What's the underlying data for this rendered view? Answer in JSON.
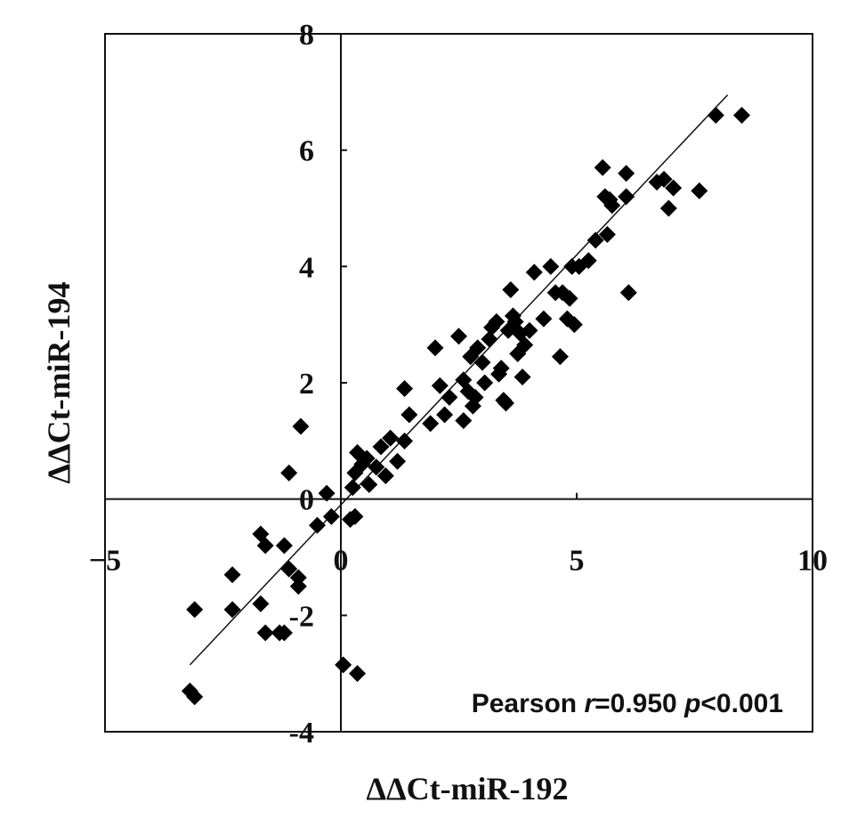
{
  "chart_data": {
    "type": "scatter",
    "title": "",
    "xlabel": "ΔΔCt-miR-192",
    "ylabel": "ΔΔCt-miR-194",
    "xlim": [
      -5,
      10
    ],
    "ylim": [
      -4,
      8
    ],
    "xticks": [
      -5,
      0,
      5,
      10
    ],
    "yticks": [
      -4,
      -2,
      0,
      2,
      4,
      6,
      8
    ],
    "grid": false,
    "legend": "none",
    "marker": "diamond",
    "color": "#000000",
    "annotation": {
      "prefix": "Pearson ",
      "r_symbol": "r",
      "r_value": "=0.950 ",
      "p_symbol": "p",
      "p_value": "<0.001"
    },
    "trendline": {
      "x": [
        -3.2,
        8.2
      ],
      "y": [
        -2.85,
        6.95
      ]
    },
    "points": [
      [
        -3.2,
        -3.3
      ],
      [
        -3.1,
        -3.4
      ],
      [
        -3.1,
        -1.9
      ],
      [
        -2.3,
        -1.3
      ],
      [
        -2.3,
        -1.9
      ],
      [
        -1.7,
        -0.6
      ],
      [
        -1.7,
        -1.8
      ],
      [
        -1.6,
        -2.3
      ],
      [
        -1.6,
        -0.8
      ],
      [
        -1.3,
        -2.3
      ],
      [
        -1.2,
        -2.3
      ],
      [
        -1.2,
        -0.8
      ],
      [
        -1.1,
        -1.2
      ],
      [
        -1.1,
        0.45
      ],
      [
        -0.9,
        -1.5
      ],
      [
        -0.9,
        -1.35
      ],
      [
        -0.85,
        1.25
      ],
      [
        -0.5,
        -0.45
      ],
      [
        -0.3,
        0.1
      ],
      [
        -0.2,
        -0.3
      ],
      [
        0.05,
        -2.85
      ],
      [
        0.2,
        -0.35
      ],
      [
        0.3,
        -0.3
      ],
      [
        0.35,
        -3.0
      ],
      [
        0.25,
        0.2
      ],
      [
        0.3,
        0.45
      ],
      [
        0.35,
        0.8
      ],
      [
        0.45,
        0.6
      ],
      [
        0.55,
        0.7
      ],
      [
        0.6,
        0.25
      ],
      [
        0.75,
        0.55
      ],
      [
        0.85,
        0.9
      ],
      [
        0.95,
        0.4
      ],
      [
        1.05,
        1.05
      ],
      [
        1.2,
        0.65
      ],
      [
        1.35,
        1.0
      ],
      [
        1.35,
        1.9
      ],
      [
        1.45,
        1.45
      ],
      [
        1.9,
        1.3
      ],
      [
        2.0,
        2.6
      ],
      [
        2.1,
        1.95
      ],
      [
        2.2,
        1.45
      ],
      [
        2.3,
        1.75
      ],
      [
        2.5,
        2.8
      ],
      [
        2.6,
        2.05
      ],
      [
        2.6,
        1.35
      ],
      [
        2.7,
        1.85
      ],
      [
        2.75,
        2.45
      ],
      [
        2.8,
        1.6
      ],
      [
        2.85,
        1.75
      ],
      [
        2.9,
        2.6
      ],
      [
        3.0,
        2.35
      ],
      [
        3.05,
        2.0
      ],
      [
        3.15,
        2.75
      ],
      [
        3.2,
        2.95
      ],
      [
        3.3,
        3.05
      ],
      [
        3.35,
        2.15
      ],
      [
        3.4,
        2.25
      ],
      [
        3.45,
        1.7
      ],
      [
        3.5,
        1.65
      ],
      [
        3.55,
        2.9
      ],
      [
        3.6,
        3.6
      ],
      [
        3.65,
        3.15
      ],
      [
        3.7,
        3.05
      ],
      [
        3.75,
        2.5
      ],
      [
        3.8,
        2.85
      ],
      [
        3.85,
        2.1
      ],
      [
        3.9,
        2.65
      ],
      [
        4.0,
        2.9
      ],
      [
        4.1,
        3.9
      ],
      [
        4.3,
        3.1
      ],
      [
        4.45,
        4.0
      ],
      [
        4.55,
        3.55
      ],
      [
        4.65,
        2.45
      ],
      [
        4.7,
        3.55
      ],
      [
        4.8,
        3.1
      ],
      [
        4.85,
        3.45
      ],
      [
        4.9,
        4.0
      ],
      [
        4.95,
        3.0
      ],
      [
        5.05,
        4.0
      ],
      [
        5.25,
        4.1
      ],
      [
        5.4,
        4.45
      ],
      [
        5.55,
        5.7
      ],
      [
        5.6,
        5.2
      ],
      [
        5.65,
        4.55
      ],
      [
        5.7,
        5.15
      ],
      [
        5.75,
        5.05
      ],
      [
        6.05,
        5.6
      ],
      [
        6.05,
        5.2
      ],
      [
        6.1,
        3.55
      ],
      [
        6.7,
        5.45
      ],
      [
        6.85,
        5.5
      ],
      [
        6.95,
        5.0
      ],
      [
        7.05,
        5.35
      ],
      [
        7.6,
        5.3
      ],
      [
        7.95,
        6.6
      ],
      [
        8.5,
        6.6
      ]
    ]
  }
}
